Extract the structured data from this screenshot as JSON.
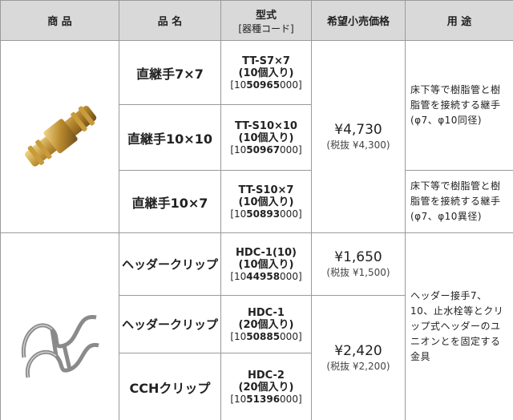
{
  "header": {
    "product": "商 品",
    "name": "品 名",
    "model": "型式",
    "model_sub": "[器種コード]",
    "price": "希望小売価格",
    "usage": "用 途"
  },
  "groups": [
    {
      "rows": [
        {
          "name": "直継手7×7",
          "model": "TT-S7×7",
          "pack": "(10個入り)",
          "code_pre": "[10",
          "code_bold": "50965",
          "code_post": "000]"
        },
        {
          "name": "直継手10×10",
          "model": "TT-S10×10",
          "pack": "(10個入り)",
          "code_pre": "[10",
          "code_bold": "50967",
          "code_post": "000]"
        },
        {
          "name": "直継手10×7",
          "model": "TT-S10×7",
          "pack": "(10個入り)",
          "code_pre": "[10",
          "code_bold": "50893",
          "code_post": "000]"
        }
      ],
      "prices": [
        {
          "price": "¥4,730",
          "tax": "(税抜 ¥4,300)"
        }
      ],
      "usages": [
        "床下等で樹脂管と樹脂管を接続する継手(φ7、φ10同径)",
        "床下等で樹脂管と樹脂管を接続する継手(φ7、φ10異径)"
      ]
    },
    {
      "rows": [
        {
          "name": "ヘッダークリップ",
          "model": "HDC-1(10)",
          "pack": "(10個入り)",
          "code_pre": "[10",
          "code_bold": "44958",
          "code_post": "000]"
        },
        {
          "name": "ヘッダークリップ",
          "model": "HDC-1",
          "pack": "(20個入り)",
          "code_pre": "[10",
          "code_bold": "50885",
          "code_post": "000]"
        },
        {
          "name": "CCHクリップ",
          "model": "HDC-2",
          "pack": "(20個入り)",
          "code_pre": "[10",
          "code_bold": "51396",
          "code_post": "000]"
        }
      ],
      "prices": [
        {
          "price": "¥1,650",
          "tax": "(税抜 ¥1,500)"
        },
        {
          "price": "¥2,420",
          "tax": "(税抜 ¥2,200)"
        }
      ],
      "usages": [
        "ヘッダー接手7、10、止水栓等とクリップ式ヘッダーのユニオンとを固定する金具"
      ]
    }
  ]
}
